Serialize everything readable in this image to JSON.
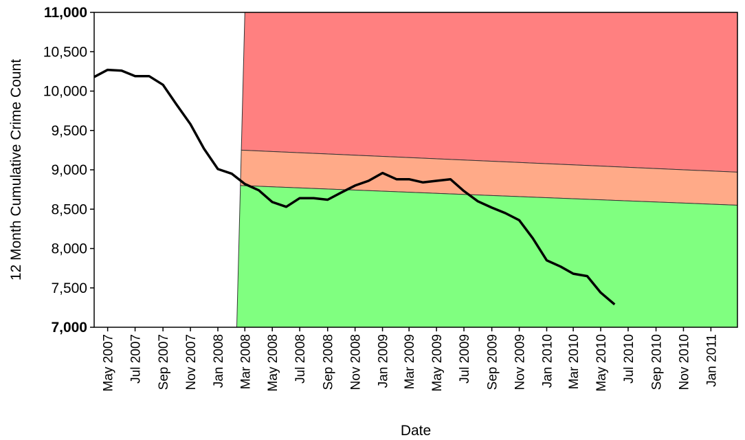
{
  "chart_data": {
    "type": "line",
    "title": "",
    "xlabel": "Date",
    "ylabel": "12 Month Cumulative Crime Count",
    "ylim": [
      7000,
      11000
    ],
    "xlim": [
      "2007-04-01",
      "2011-03-01"
    ],
    "y_ticks": [
      {
        "value": 7000,
        "label": "7,000"
      },
      {
        "value": 7500,
        "label": "7,500"
      },
      {
        "value": 8000,
        "label": "8,000"
      },
      {
        "value": 8500,
        "label": "8,500"
      },
      {
        "value": 9000,
        "label": "9,000"
      },
      {
        "value": 9500,
        "label": "9,500"
      },
      {
        "value": 10000,
        "label": "10,000"
      },
      {
        "value": 10500,
        "label": "10,500"
      },
      {
        "value": 11000,
        "label": "11,000"
      }
    ],
    "x_ticks": [
      {
        "date": "2007-05-01",
        "label": "May 2007"
      },
      {
        "date": "2007-07-01",
        "label": "Jul 2007"
      },
      {
        "date": "2007-09-01",
        "label": "Sep 2007"
      },
      {
        "date": "2007-11-01",
        "label": "Nov 2007"
      },
      {
        "date": "2008-01-01",
        "label": "Jan 2008"
      },
      {
        "date": "2008-03-01",
        "label": "Mar 2008"
      },
      {
        "date": "2008-05-01",
        "label": "May 2008"
      },
      {
        "date": "2008-07-01",
        "label": "Jul 2008"
      },
      {
        "date": "2008-09-01",
        "label": "Sep 2008"
      },
      {
        "date": "2008-11-01",
        "label": "Nov 2008"
      },
      {
        "date": "2009-01-01",
        "label": "Jan 2009"
      },
      {
        "date": "2009-03-01",
        "label": "Mar 2009"
      },
      {
        "date": "2009-05-01",
        "label": "May 2009"
      },
      {
        "date": "2009-07-01",
        "label": "Jul 2009"
      },
      {
        "date": "2009-09-01",
        "label": "Sep 2009"
      },
      {
        "date": "2009-11-01",
        "label": "Nov 2009"
      },
      {
        "date": "2010-01-01",
        "label": "Jan 2010"
      },
      {
        "date": "2010-03-01",
        "label": "Mar 2010"
      },
      {
        "date": "2010-05-01",
        "label": "May 2010"
      },
      {
        "date": "2010-07-01",
        "label": "Jul 2010"
      },
      {
        "date": "2010-09-01",
        "label": "Sep 2010"
      },
      {
        "date": "2010-11-01",
        "label": "Nov 2010"
      },
      {
        "date": "2011-01-01",
        "label": "Jan 2011"
      }
    ],
    "series": [
      {
        "color": "#000000",
        "points": [
          {
            "x": "2007-04-01",
            "y": 10180
          },
          {
            "x": "2007-05-01",
            "y": 10270
          },
          {
            "x": "2007-06-01",
            "y": 10260
          },
          {
            "x": "2007-07-01",
            "y": 10190
          },
          {
            "x": "2007-08-01",
            "y": 10190
          },
          {
            "x": "2007-09-01",
            "y": 10080
          },
          {
            "x": "2007-10-01",
            "y": 9830
          },
          {
            "x": "2007-11-01",
            "y": 9580
          },
          {
            "x": "2007-12-01",
            "y": 9270
          },
          {
            "x": "2008-01-01",
            "y": 9010
          },
          {
            "x": "2008-02-01",
            "y": 8950
          },
          {
            "x": "2008-03-01",
            "y": 8820
          },
          {
            "x": "2008-04-01",
            "y": 8740
          },
          {
            "x": "2008-05-01",
            "y": 8590
          },
          {
            "x": "2008-06-01",
            "y": 8530
          },
          {
            "x": "2008-07-01",
            "y": 8640
          },
          {
            "x": "2008-08-01",
            "y": 8640
          },
          {
            "x": "2008-09-01",
            "y": 8620
          },
          {
            "x": "2008-10-01",
            "y": 8710
          },
          {
            "x": "2008-11-01",
            "y": 8800
          },
          {
            "x": "2008-12-01",
            "y": 8860
          },
          {
            "x": "2009-01-01",
            "y": 8960
          },
          {
            "x": "2009-02-01",
            "y": 8880
          },
          {
            "x": "2009-03-01",
            "y": 8880
          },
          {
            "x": "2009-04-01",
            "y": 8840
          },
          {
            "x": "2009-05-01",
            "y": 8860
          },
          {
            "x": "2009-06-01",
            "y": 8880
          },
          {
            "x": "2009-07-01",
            "y": 8730
          },
          {
            "x": "2009-08-01",
            "y": 8600
          },
          {
            "x": "2009-09-01",
            "y": 8520
          },
          {
            "x": "2009-10-01",
            "y": 8450
          },
          {
            "x": "2009-11-01",
            "y": 8360
          },
          {
            "x": "2009-12-01",
            "y": 8130
          },
          {
            "x": "2010-01-01",
            "y": 7850
          },
          {
            "x": "2010-02-01",
            "y": 7770
          },
          {
            "x": "2010-03-01",
            "y": 7680
          },
          {
            "x": "2010-04-01",
            "y": 7650
          },
          {
            "x": "2010-05-01",
            "y": 7440
          },
          {
            "x": "2010-06-01",
            "y": 7290
          }
        ]
      }
    ],
    "bands": [
      {
        "name": "red",
        "color": "#ff8080",
        "lower": [
          {
            "x": "2008-03-01",
            "y": 9250
          },
          {
            "x": "2011-03-01",
            "y": 8970
          }
        ],
        "upper": [
          {
            "x": "2008-03-01",
            "y": 11000
          },
          {
            "x": "2011-03-01",
            "y": 11000
          }
        ]
      },
      {
        "name": "orange",
        "color": "#ffaa88",
        "lower": [
          {
            "x": "2008-03-01",
            "y": 8800
          },
          {
            "x": "2011-03-01",
            "y": 8550
          }
        ],
        "upper": [
          {
            "x": "2008-03-01",
            "y": 9250
          },
          {
            "x": "2011-03-01",
            "y": 8970
          }
        ]
      },
      {
        "name": "green",
        "color": "#80ff80",
        "lower": [
          {
            "x": "2008-03-01",
            "y": 7000
          },
          {
            "x": "2011-03-01",
            "y": 7000
          }
        ],
        "upper": [
          {
            "x": "2008-03-01",
            "y": 8800
          },
          {
            "x": "2011-03-01",
            "y": 8550
          }
        ]
      }
    ],
    "band_start_ramp": {
      "from": "2008-02-12",
      "to": "2008-03-01"
    },
    "grid": false,
    "legend": "none"
  }
}
